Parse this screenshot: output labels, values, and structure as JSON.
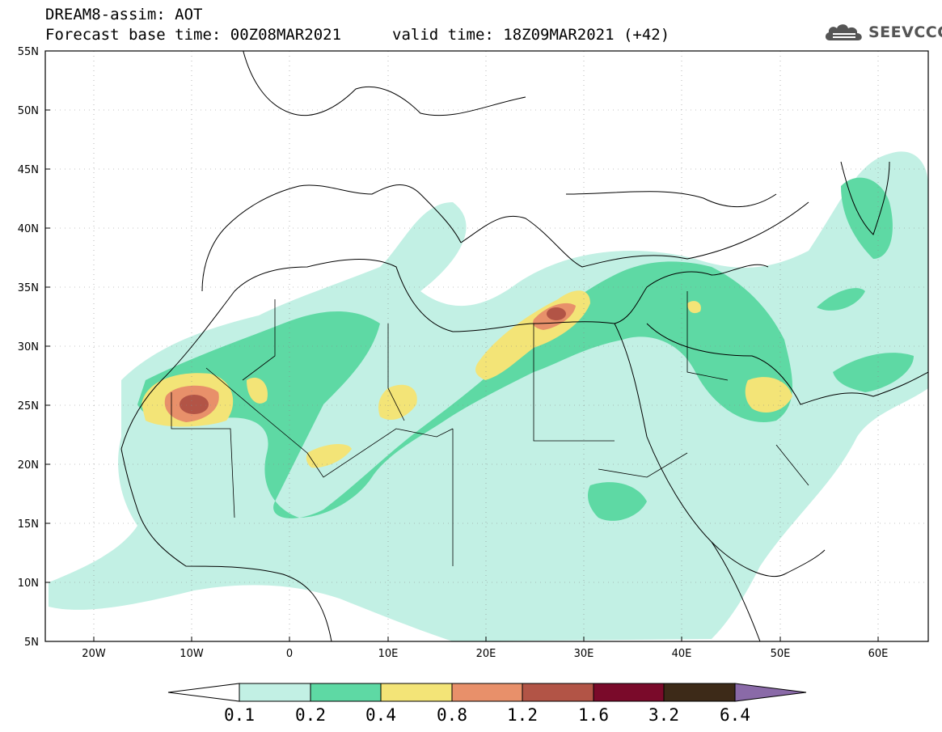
{
  "header": {
    "title": "DREAM8-assim: AOT",
    "base_time_line": "Forecast base time: 00Z08MAR2021",
    "valid_time_line": "valid time: 18Z09MAR2021 (+42)"
  },
  "logo": {
    "text": "SEEVCCC",
    "icon": "cloud-icon",
    "color": "#555555"
  },
  "map": {
    "lat_labels": [
      "55N",
      "50N",
      "45N",
      "40N",
      "35N",
      "30N",
      "25N",
      "20N",
      "15N",
      "10N",
      "5N"
    ],
    "lon_labels": [
      "20W",
      "10W",
      "0",
      "10E",
      "20E",
      "30E",
      "40E",
      "50E",
      "60E"
    ],
    "lat_range": [
      5,
      55
    ],
    "lon_range": [
      -25,
      65
    ],
    "projection": "lat-lon"
  },
  "colorbar": {
    "labels": [
      "0.1",
      "0.2",
      "0.4",
      "0.8",
      "1.2",
      "1.6",
      "3.2",
      "6.4"
    ],
    "colors": [
      "#ffffff",
      "#c2f0e4",
      "#5ed9a4",
      "#f3e477",
      "#e8906a",
      "#b25446",
      "#7a0a2a",
      "#3d2a18",
      "#8a6aa8"
    ]
  }
}
